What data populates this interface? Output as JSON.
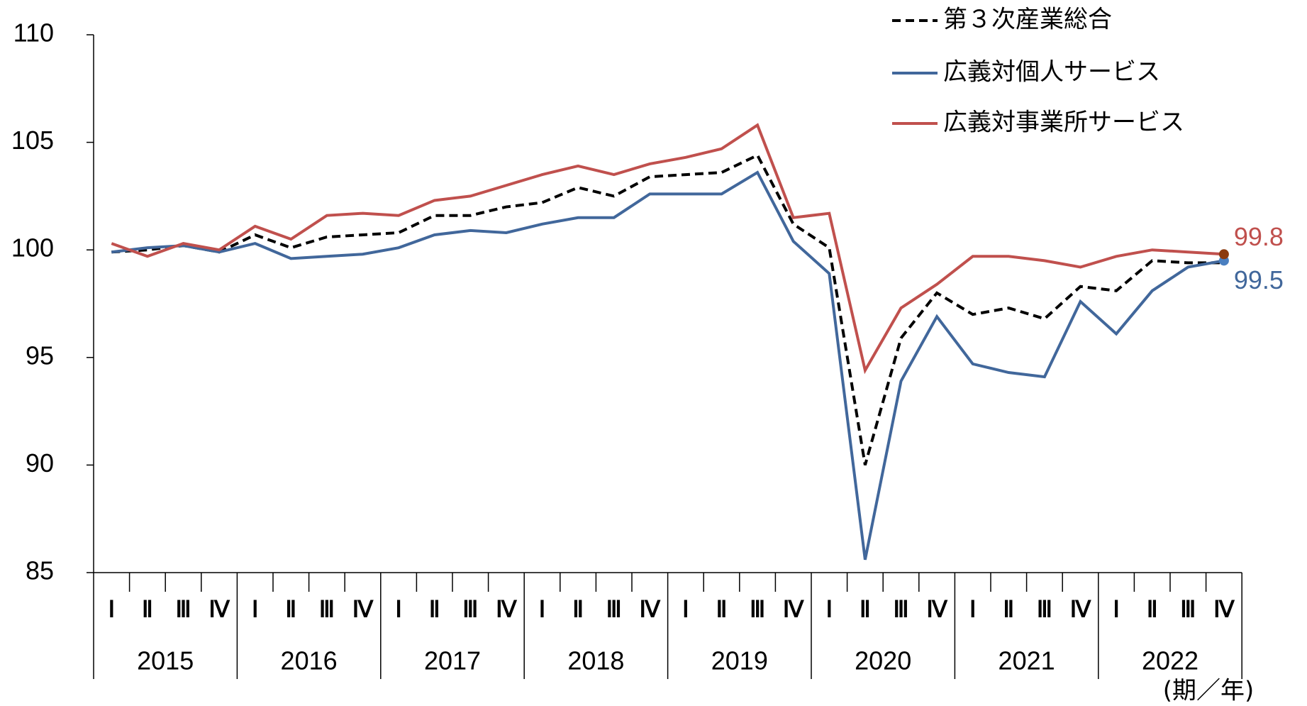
{
  "chart_data": {
    "type": "line",
    "categories": [
      "Ⅰ",
      "Ⅱ",
      "Ⅲ",
      "Ⅳ",
      "Ⅰ",
      "Ⅱ",
      "Ⅲ",
      "Ⅳ",
      "Ⅰ",
      "Ⅱ",
      "Ⅲ",
      "Ⅳ",
      "Ⅰ",
      "Ⅱ",
      "Ⅲ",
      "Ⅳ",
      "Ⅰ",
      "Ⅱ",
      "Ⅲ",
      "Ⅳ",
      "Ⅰ",
      "Ⅱ",
      "Ⅲ",
      "Ⅳ",
      "Ⅰ",
      "Ⅱ",
      "Ⅲ",
      "Ⅳ",
      "Ⅰ",
      "Ⅱ",
      "Ⅲ",
      "Ⅳ"
    ],
    "years": [
      "2015",
      "2016",
      "2017",
      "2018",
      "2019",
      "2020",
      "2021",
      "2022"
    ],
    "x_label": "(期／年)",
    "ylim": [
      85,
      110
    ],
    "yticks": [
      85,
      90,
      95,
      100,
      105,
      110
    ],
    "grid": false,
    "series": [
      {
        "name": "第３次産業総合",
        "color": "#000000",
        "dash": true,
        "values": [
          99.9,
          100.0,
          100.2,
          99.9,
          100.7,
          100.1,
          100.6,
          100.7,
          100.8,
          101.6,
          101.6,
          102.0,
          102.2,
          102.9,
          102.5,
          103.4,
          103.5,
          103.6,
          104.4,
          101.2,
          100.1,
          90.0,
          95.9,
          98.0,
          97.0,
          97.3,
          96.8,
          98.3,
          98.1,
          99.5,
          99.4,
          99.4
        ]
      },
      {
        "name": "広義対個人サービス",
        "color": "#41679b",
        "dash": false,
        "end_label": "99.5",
        "marker_color": "#4a7fc0",
        "values": [
          99.9,
          100.1,
          100.2,
          99.9,
          100.3,
          99.6,
          99.7,
          99.8,
          100.1,
          100.7,
          100.9,
          100.8,
          101.2,
          101.5,
          101.5,
          102.6,
          102.6,
          102.6,
          103.6,
          100.4,
          98.9,
          85.6,
          93.9,
          96.9,
          94.7,
          94.3,
          94.1,
          97.6,
          96.1,
          98.1,
          99.2,
          99.5
        ]
      },
      {
        "name": "広義対事業所サービス",
        "color": "#c0504d",
        "dash": false,
        "end_label": "99.8",
        "marker_color": "#8b3a0e",
        "values": [
          100.3,
          99.7,
          100.3,
          100.0,
          101.1,
          100.5,
          101.6,
          101.7,
          101.6,
          102.3,
          102.5,
          103.0,
          103.5,
          103.9,
          103.5,
          104.0,
          104.3,
          104.7,
          105.8,
          101.5,
          101.7,
          94.4,
          97.3,
          98.4,
          99.7,
          99.7,
          99.5,
          99.2,
          99.7,
          100.0,
          99.9,
          99.8
        ]
      }
    ]
  }
}
